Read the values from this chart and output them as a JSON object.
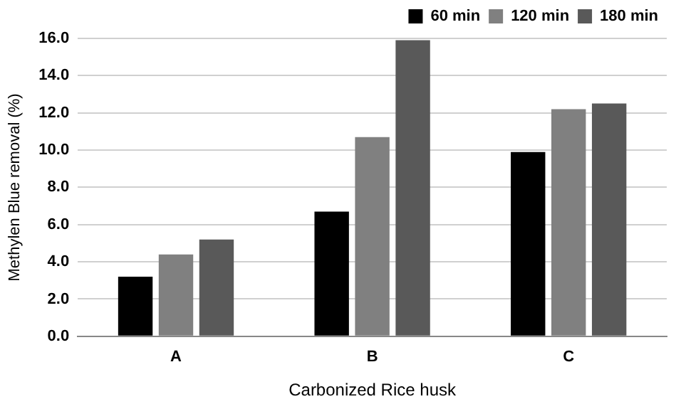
{
  "chart_data": {
    "type": "bar",
    "xlabel": "Carbonized Rice husk",
    "ylabel": "Methylen Blue removal (%)",
    "categories": [
      "A",
      "B",
      "C"
    ],
    "series": [
      {
        "name": "60 min",
        "color": "#000000",
        "values": [
          3.2,
          6.7,
          9.9
        ]
      },
      {
        "name": "120 min",
        "color": "#808080",
        "values": [
          4.4,
          10.7,
          12.2
        ]
      },
      {
        "name": "180 min",
        "color": "#595959",
        "values": [
          5.2,
          15.9,
          12.5
        ]
      }
    ],
    "ylim": [
      0,
      16
    ],
    "yticks": [
      {
        "value": 0,
        "label": "0.0"
      },
      {
        "value": 2,
        "label": "2.0"
      },
      {
        "value": 4,
        "label": "4.0"
      },
      {
        "value": 6,
        "label": "6.0"
      },
      {
        "value": 8,
        "label": "8.0"
      },
      {
        "value": 10,
        "label": "10.0"
      },
      {
        "value": 12,
        "label": "12.0"
      },
      {
        "value": 14,
        "label": "14.0"
      },
      {
        "value": 16,
        "label": "16.0"
      }
    ],
    "grid": "y",
    "legend": "top right"
  }
}
